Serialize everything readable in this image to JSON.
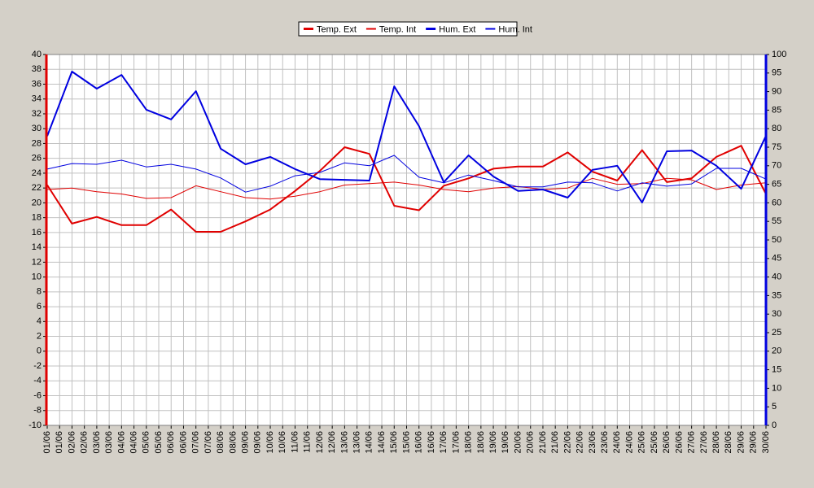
{
  "chart_data": {
    "type": "line",
    "categories": [
      "01/06",
      "02/06",
      "03/06",
      "04/06",
      "05/06",
      "06/06",
      "07/06",
      "08/06",
      "09/06",
      "10/06",
      "11/06",
      "12/06",
      "13/06",
      "14/06",
      "15/06",
      "16/06",
      "17/06",
      "18/06",
      "19/06",
      "20/06",
      "21/06",
      "22/06",
      "23/06",
      "24/06",
      "25/06",
      "26/06",
      "27/06",
      "28/06",
      "29/06",
      "30/06"
    ],
    "xtick_labels": [
      "01/06",
      "01/06",
      "02/06",
      "02/06",
      "03/06",
      "03/06",
      "04/06",
      "04/06",
      "05/06",
      "05/06",
      "06/06",
      "06/06",
      "07/06",
      "07/06",
      "08/06",
      "08/06",
      "09/06",
      "09/06",
      "10/06",
      "10/06",
      "11/06",
      "11/06",
      "12/06",
      "12/06",
      "13/06",
      "13/06",
      "14/06",
      "14/06",
      "15/06",
      "15/06",
      "16/06",
      "16/06",
      "17/06",
      "17/06",
      "18/06",
      "18/06",
      "19/06",
      "19/06",
      "20/06",
      "20/06",
      "21/06",
      "21/06",
      "22/06",
      "22/06",
      "23/06",
      "23/06",
      "24/06",
      "24/06",
      "25/06",
      "25/06",
      "26/06",
      "26/06",
      "27/06",
      "27/06",
      "28/06",
      "28/06",
      "29/06",
      "29/06",
      "30/06"
    ],
    "series": [
      {
        "name": "Temp. Ext",
        "color": "#e00000",
        "width": 2,
        "values": [
          22.4,
          17.2,
          18.1,
          17.0,
          17.0,
          19.1,
          16.1,
          16.1,
          17.5,
          19.1,
          21.6,
          24.3,
          27.5,
          26.6,
          19.6,
          19.0,
          22.3,
          23.3,
          24.6,
          24.9,
          24.9,
          26.8,
          24.2,
          23.0,
          27.1,
          22.8,
          23.3,
          26.2,
          27.7,
          21.2
        ]
      },
      {
        "name": "Temp. Int",
        "color": "#e00000",
        "width": 1,
        "values": [
          21.8,
          22.0,
          21.5,
          21.2,
          20.6,
          20.7,
          22.3,
          21.5,
          20.7,
          20.5,
          20.9,
          21.5,
          22.4,
          22.6,
          22.8,
          22.4,
          21.8,
          21.5,
          22.0,
          22.2,
          21.8,
          22.0,
          23.3,
          22.5,
          22.6,
          23.3,
          23.1,
          21.8,
          22.4,
          22.7
        ]
      },
      {
        "name": "Hum. Ext",
        "color": "#0000e0",
        "width": 2,
        "axis": "y2",
        "values": [
          78,
          95.4,
          90.8,
          94.5,
          85.1,
          82.5,
          90.1,
          74.6,
          70.4,
          72.4,
          69.1,
          66.4,
          66.2,
          66.0,
          91.4,
          80.7,
          65.6,
          72.8,
          67.1,
          63.2,
          63.6,
          61.4,
          68.9,
          70.0,
          60.1,
          73.9,
          74.1,
          70.0,
          63.8,
          78.1
        ]
      },
      {
        "name": "Hum. Int",
        "color": "#0000e0",
        "width": 1,
        "axis": "y2",
        "values": [
          69.1,
          70.6,
          70.4,
          71.5,
          69.7,
          70.4,
          69.1,
          66.7,
          62.9,
          64.5,
          67.3,
          68.2,
          70.8,
          70.0,
          72.8,
          66.9,
          65.4,
          67.5,
          66.0,
          64.3,
          64.3,
          65.6,
          65.4,
          63.2,
          65.4,
          64.5,
          65.1,
          69.3,
          69.3,
          66.4
        ]
      }
    ],
    "ylim": [
      -10,
      40
    ],
    "yticks": [
      -10,
      -8,
      -6,
      -4,
      -2,
      0,
      2,
      4,
      6,
      8,
      10,
      12,
      14,
      16,
      18,
      20,
      22,
      24,
      26,
      28,
      30,
      32,
      34,
      36,
      38,
      40
    ],
    "y2lim": [
      0,
      100
    ],
    "y2ticks": [
      0,
      5,
      10,
      15,
      20,
      25,
      30,
      35,
      40,
      45,
      50,
      55,
      60,
      65,
      70,
      75,
      80,
      85,
      90,
      95,
      100
    ],
    "grid": true,
    "legend": "top"
  }
}
